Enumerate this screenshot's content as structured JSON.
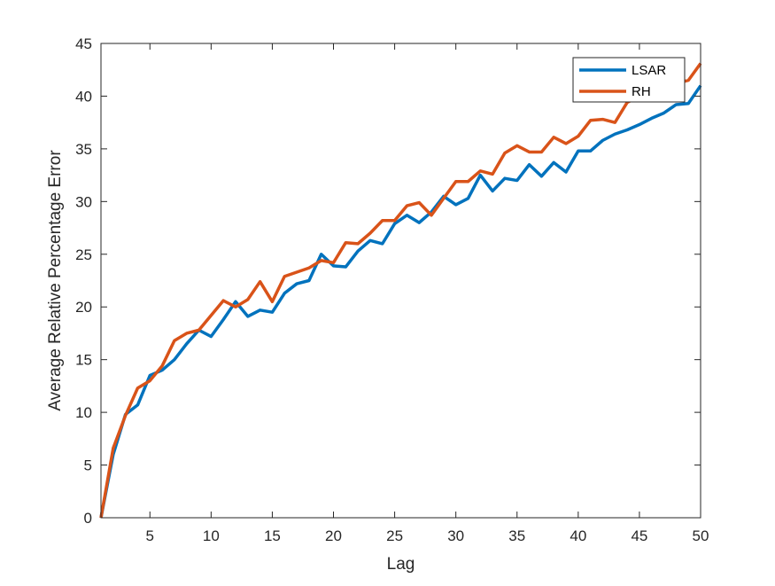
{
  "chart_data": {
    "type": "line",
    "title": "",
    "xlabel": "Lag",
    "ylabel": "Average Relative Percentage Error",
    "xlim": [
      1,
      50
    ],
    "ylim": [
      0,
      45
    ],
    "xticks": [
      5,
      10,
      15,
      20,
      25,
      30,
      35,
      40,
      45,
      50
    ],
    "yticks": [
      0,
      5,
      10,
      15,
      20,
      25,
      30,
      35,
      40,
      45
    ],
    "grid": false,
    "legend_position": "top-right",
    "x": [
      1,
      2,
      3,
      4,
      5,
      6,
      7,
      8,
      9,
      10,
      11,
      12,
      13,
      14,
      15,
      16,
      17,
      18,
      19,
      20,
      21,
      22,
      23,
      24,
      25,
      26,
      27,
      28,
      29,
      30,
      31,
      32,
      33,
      34,
      35,
      36,
      37,
      38,
      39,
      40,
      41,
      42,
      43,
      44,
      45,
      46,
      47,
      48,
      49,
      50
    ],
    "series": [
      {
        "name": "LSAR",
        "color": "#0072BD",
        "values": [
          0,
          6.0,
          9.8,
          10.7,
          13.5,
          14.0,
          15.0,
          16.5,
          17.8,
          17.2,
          18.8,
          20.5,
          19.1,
          19.7,
          19.5,
          21.3,
          22.2,
          22.5,
          25.0,
          23.9,
          23.8,
          25.3,
          26.3,
          26.0,
          27.9,
          28.7,
          28.0,
          29.0,
          30.5,
          29.7,
          30.3,
          32.5,
          31.0,
          32.2,
          32.0,
          33.5,
          32.4,
          33.7,
          32.8,
          34.8,
          34.8,
          35.8,
          36.4,
          36.8,
          37.3,
          37.9,
          38.4,
          39.2,
          39.3,
          41.0
        ]
      },
      {
        "name": "RH",
        "color": "#D95319",
        "values": [
          0,
          6.6,
          9.7,
          12.3,
          13.0,
          14.4,
          16.8,
          17.5,
          17.8,
          19.2,
          20.6,
          20.0,
          20.7,
          22.4,
          20.5,
          22.9,
          23.3,
          23.7,
          24.4,
          24.2,
          26.1,
          26.0,
          27.0,
          28.2,
          28.2,
          29.6,
          29.9,
          28.7,
          30.3,
          31.9,
          31.9,
          32.9,
          32.6,
          34.6,
          35.3,
          34.7,
          34.7,
          36.1,
          35.5,
          36.2,
          37.7,
          37.8,
          37.5,
          39.4,
          40.0,
          40.5,
          41.0,
          41.2,
          41.5,
          43.1
        ]
      }
    ]
  }
}
